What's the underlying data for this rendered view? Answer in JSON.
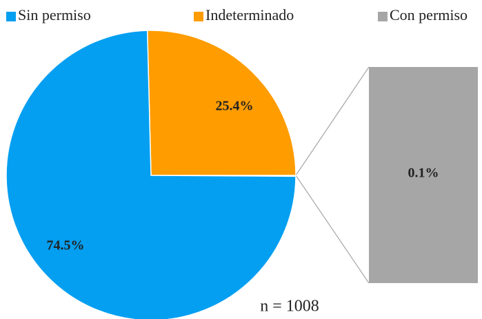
{
  "chart_data": {
    "type": "pie-of-bar",
    "categories": [
      "Sin permiso",
      "Indeterminado",
      "Con permiso"
    ],
    "values": [
      74.5,
      25.4,
      0.1
    ],
    "value_labels": [
      "74.5%",
      "25.4%",
      "0.1%"
    ],
    "colors": [
      "#049ff1",
      "#ff9c00",
      "#a6a6a6"
    ],
    "annotation": "n = 1008",
    "legend": "top"
  }
}
